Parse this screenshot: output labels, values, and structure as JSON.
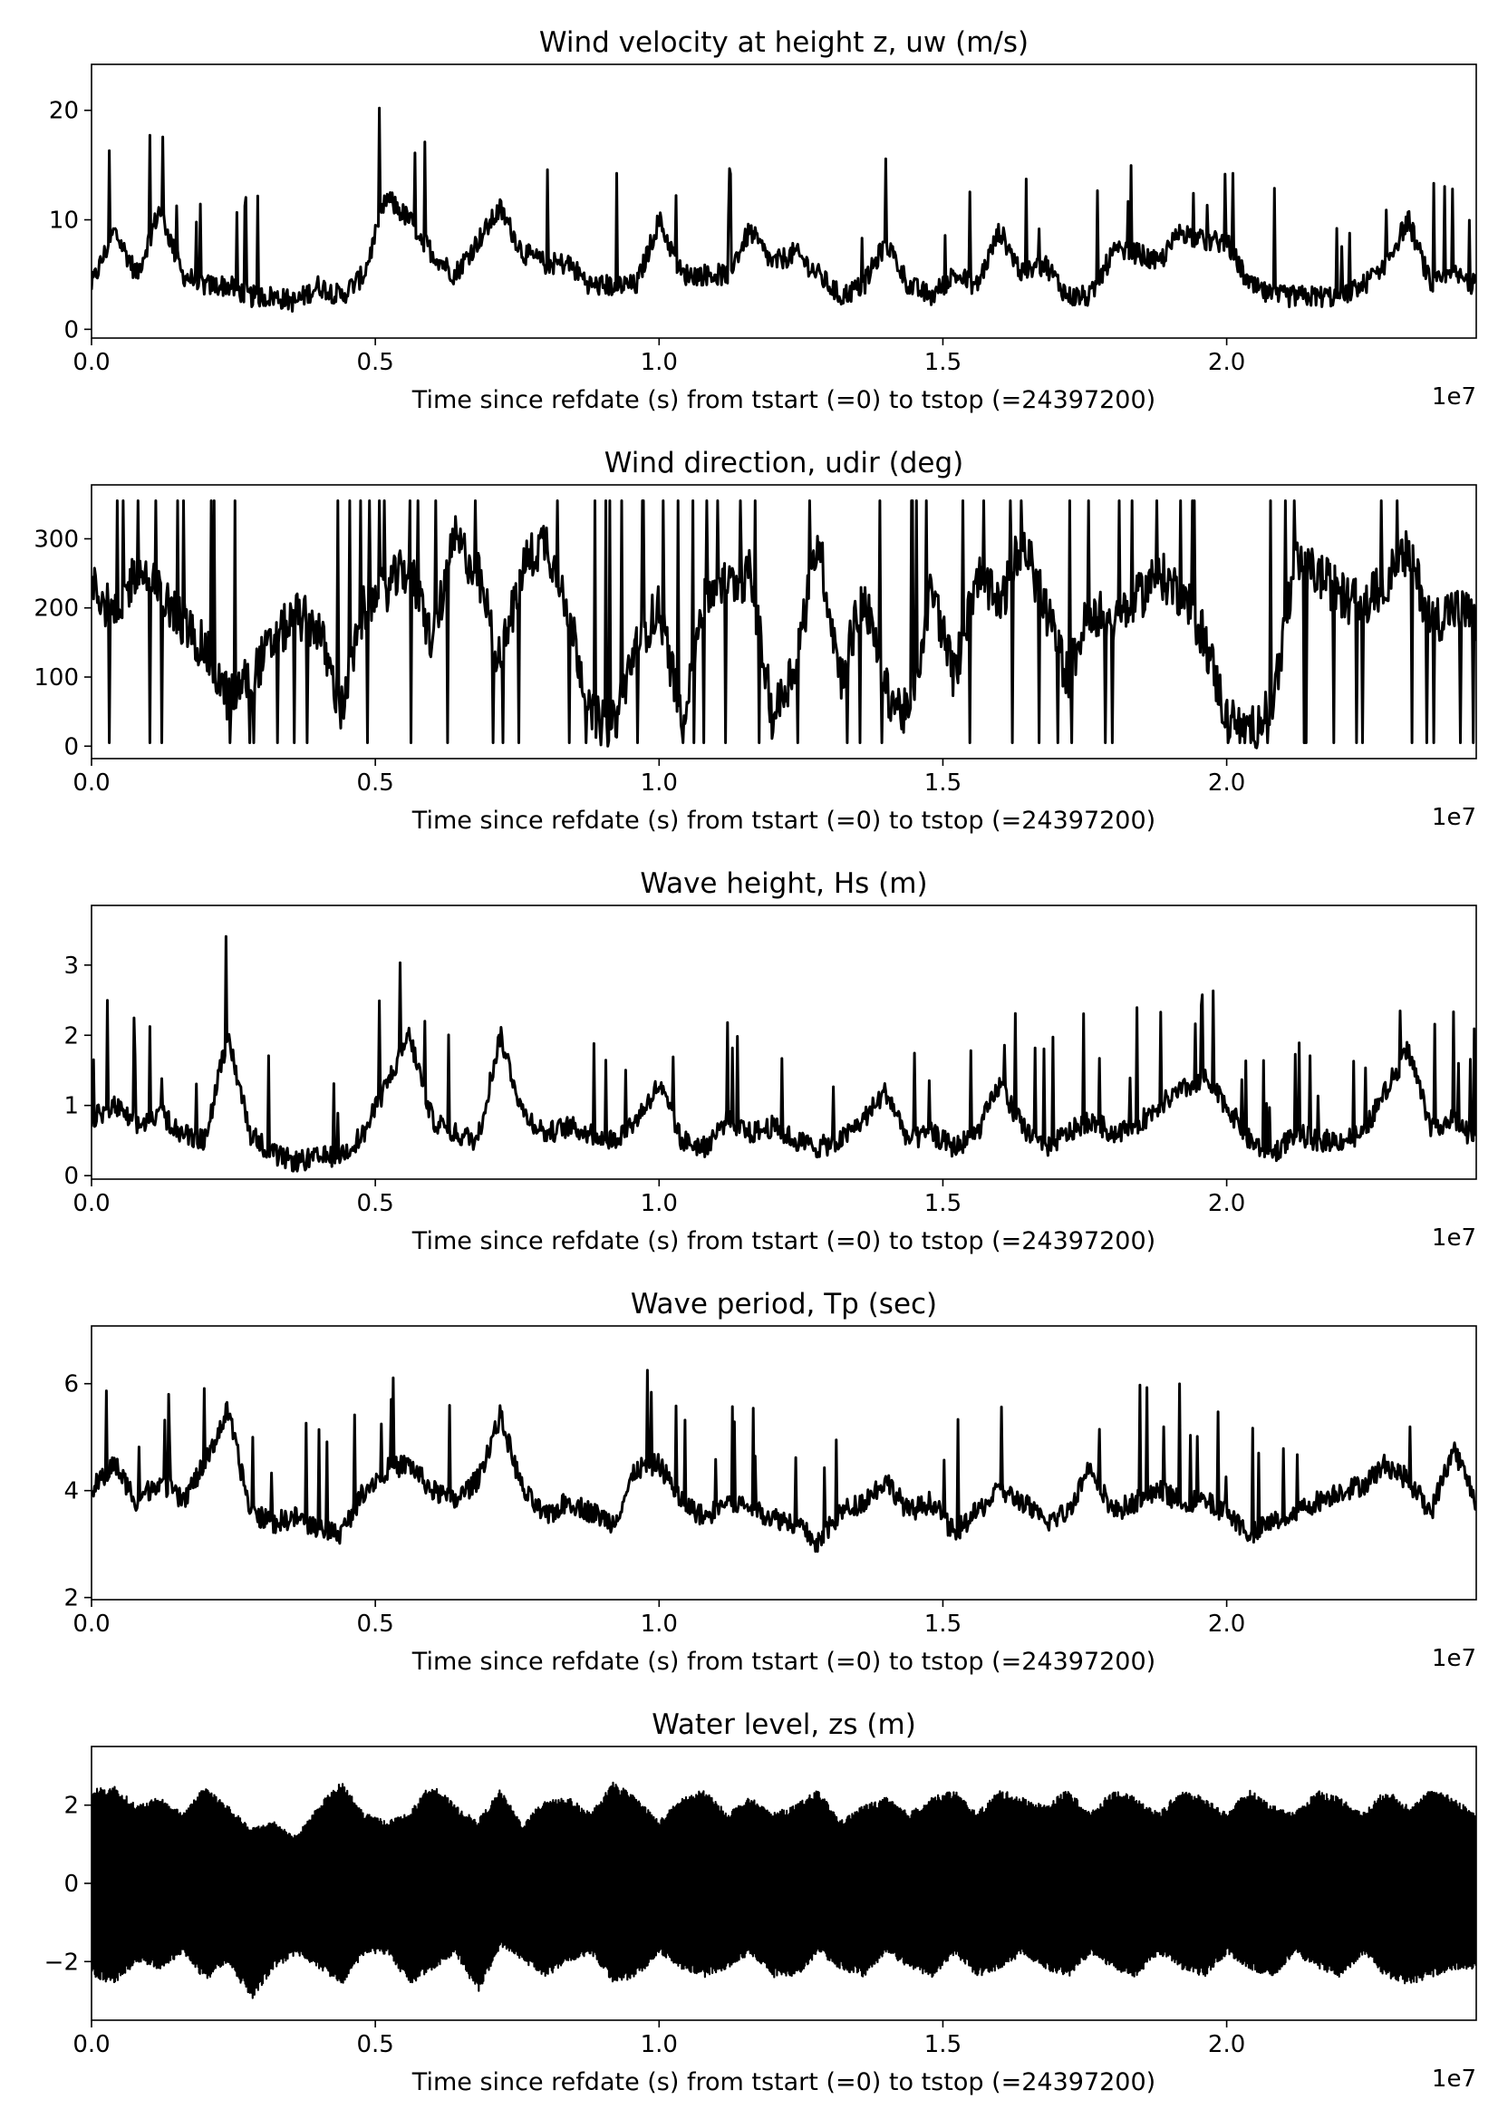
{
  "figure": {
    "line_color": "#000000"
  },
  "chart_data": [
    {
      "type": "line",
      "title": "Wind velocity at height z, uw (m/s)",
      "xlabel": "Time since refdate (s) from tstart (=0) to tstop (=24397200)",
      "x_offset_label": "1e7",
      "xlim": [
        0,
        24397200
      ],
      "ylim": [
        -0.8,
        24.2
      ],
      "x_ticks": [
        0,
        5000000,
        10000000,
        15000000,
        20000000
      ],
      "x_tick_labels": [
        "0.0",
        "0.5",
        "1.0",
        "1.5",
        "2.0"
      ],
      "y_ticks": [
        0,
        10,
        20
      ],
      "y_tick_labels": [
        "0",
        "10",
        "20"
      ],
      "grid": false,
      "x": [
        0,
        400000,
        800000,
        1200000,
        1600000,
        2000000,
        2400000,
        2800000,
        3200000,
        3600000,
        4000000,
        4400000,
        4800000,
        5200000,
        5600000,
        6000000,
        6400000,
        6800000,
        7200000,
        7600000,
        8000000,
        8400000,
        8800000,
        9200000,
        9600000,
        10000000,
        10400000,
        10800000,
        11200000,
        11600000,
        12000000,
        12400000,
        12800000,
        13200000,
        13600000,
        14000000,
        14400000,
        14800000,
        15200000,
        15600000,
        16000000,
        16400000,
        16800000,
        17200000,
        17600000,
        18000000,
        18400000,
        18800000,
        19200000,
        19600000,
        20000000,
        20400000,
        20800000,
        21200000,
        21600000,
        22000000,
        22400000,
        22800000,
        23200000,
        23600000,
        24000000,
        24397200
      ],
      "values": [
        4,
        9,
        5,
        11,
        5,
        4,
        4,
        3,
        3,
        2.5,
        4,
        3,
        5,
        12,
        10,
        7,
        5,
        8,
        11,
        7,
        6,
        6,
        4,
        4,
        4,
        10,
        5,
        5,
        5,
        9,
        6,
        7,
        5,
        3,
        4,
        8,
        4,
        3,
        5,
        4,
        9,
        5,
        6,
        3,
        3,
        7,
        7,
        6,
        9,
        8,
        8,
        4,
        3,
        3,
        3,
        3,
        4,
        6,
        10,
        4,
        5,
        4
      ]
    },
    {
      "type": "line",
      "title": "Wind direction, udir (deg)",
      "xlabel": "Time since refdate (s) from tstart (=0) to tstop (=24397200)",
      "x_offset_label": "1e7",
      "xlim": [
        0,
        24397200
      ],
      "ylim": [
        -18,
        378
      ],
      "x_ticks": [
        0,
        5000000,
        10000000,
        15000000,
        20000000
      ],
      "x_tick_labels": [
        "0.0",
        "0.5",
        "1.0",
        "1.5",
        "2.0"
      ],
      "y_ticks": [
        0,
        100,
        200,
        300
      ],
      "y_tick_labels": [
        "0",
        "100",
        "200",
        "300"
      ],
      "grid": false,
      "x": [
        0,
        400000,
        800000,
        1200000,
        1600000,
        2000000,
        2400000,
        2800000,
        3200000,
        3600000,
        4000000,
        4400000,
        4800000,
        5200000,
        5600000,
        6000000,
        6400000,
        6800000,
        7200000,
        7600000,
        8000000,
        8400000,
        8800000,
        9200000,
        9600000,
        10000000,
        10400000,
        10800000,
        11200000,
        11600000,
        12000000,
        12400000,
        12800000,
        13200000,
        13600000,
        14000000,
        14400000,
        14800000,
        15200000,
        15600000,
        16000000,
        16400000,
        16800000,
        17200000,
        17600000,
        18000000,
        18400000,
        18800000,
        19200000,
        19600000,
        20000000,
        20400000,
        20800000,
        21200000,
        21600000,
        22000000,
        22400000,
        22800000,
        23200000,
        23600000,
        24000000,
        24397200
      ],
      "values": [
        250,
        180,
        260,
        220,
        180,
        140,
        70,
        100,
        150,
        190,
        170,
        50,
        200,
        230,
        260,
        150,
        300,
        250,
        120,
        260,
        300,
        200,
        40,
        30,
        150,
        200,
        40,
        220,
        230,
        250,
        40,
        120,
        300,
        100,
        220,
        80,
        40,
        230,
        100,
        250,
        200,
        300,
        200,
        100,
        200,
        180,
        210,
        250,
        220,
        160,
        40,
        20,
        60,
        260,
        250,
        220,
        200,
        240,
        280,
        180,
        200,
        180
      ]
    },
    {
      "type": "line",
      "title": "Wave height, Hs (m)",
      "xlabel": "Time since refdate (s) from tstart (=0) to tstop (=24397200)",
      "x_offset_label": "1e7",
      "xlim": [
        0,
        24397200
      ],
      "ylim": [
        -0.05,
        3.85
      ],
      "x_ticks": [
        0,
        5000000,
        10000000,
        15000000,
        20000000
      ],
      "x_tick_labels": [
        "0.0",
        "0.5",
        "1.0",
        "1.5",
        "2.0"
      ],
      "y_ticks": [
        0,
        1,
        2,
        3
      ],
      "y_tick_labels": [
        "0",
        "1",
        "2",
        "3"
      ],
      "grid": false,
      "x": [
        0,
        400000,
        800000,
        1200000,
        1600000,
        2000000,
        2400000,
        2800000,
        3200000,
        3600000,
        4000000,
        4400000,
        4800000,
        5200000,
        5600000,
        6000000,
        6400000,
        6800000,
        7200000,
        7600000,
        8000000,
        8400000,
        8800000,
        9200000,
        9600000,
        10000000,
        10400000,
        10800000,
        11200000,
        11600000,
        12000000,
        12400000,
        12800000,
        13200000,
        13600000,
        14000000,
        14400000,
        14800000,
        15200000,
        15600000,
        16000000,
        16400000,
        16800000,
        17200000,
        17600000,
        18000000,
        18400000,
        18800000,
        19200000,
        19600000,
        20000000,
        20400000,
        20800000,
        21200000,
        21600000,
        22000000,
        22400000,
        22800000,
        23200000,
        23600000,
        24000000,
        24397200
      ],
      "values": [
        0.8,
        1.0,
        0.7,
        0.9,
        0.6,
        0.5,
        2.0,
        0.6,
        0.3,
        0.2,
        0.25,
        0.3,
        0.6,
        1.3,
        2.0,
        0.8,
        0.6,
        0.5,
        2.0,
        0.9,
        0.6,
        0.7,
        0.6,
        0.5,
        0.8,
        1.3,
        0.5,
        0.4,
        0.8,
        0.6,
        0.7,
        0.5,
        0.4,
        0.5,
        0.8,
        1.2,
        0.5,
        0.6,
        0.4,
        0.6,
        1.3,
        0.7,
        0.4,
        0.6,
        0.8,
        0.6,
        0.7,
        1.0,
        1.2,
        1.4,
        1.0,
        0.5,
        0.3,
        0.6,
        0.5,
        0.5,
        0.6,
        1.2,
        1.8,
        0.7,
        0.8,
        0.5
      ]
    },
    {
      "type": "line",
      "title": "Wave period, Tp (sec)",
      "xlabel": "Time since refdate (s) from tstart (=0) to tstop (=24397200)",
      "x_offset_label": "1e7",
      "xlim": [
        0,
        24397200
      ],
      "ylim": [
        1.96,
        7.08
      ],
      "x_ticks": [
        0,
        5000000,
        10000000,
        15000000,
        20000000
      ],
      "x_tick_labels": [
        "0.0",
        "0.5",
        "1.0",
        "1.5",
        "2.0"
      ],
      "y_ticks": [
        2,
        4,
        6
      ],
      "y_tick_labels": [
        "2",
        "4",
        "6"
      ],
      "grid": false,
      "x": [
        0,
        400000,
        800000,
        1200000,
        1600000,
        2000000,
        2400000,
        2800000,
        3200000,
        3600000,
        4000000,
        4400000,
        4800000,
        5200000,
        5600000,
        6000000,
        6400000,
        6800000,
        7200000,
        7600000,
        8000000,
        8400000,
        8800000,
        9200000,
        9600000,
        10000000,
        10400000,
        10800000,
        11200000,
        11600000,
        12000000,
        12400000,
        12800000,
        13200000,
        13600000,
        14000000,
        14400000,
        14800000,
        15200000,
        15600000,
        16000000,
        16400000,
        16800000,
        17200000,
        17600000,
        18000000,
        18400000,
        18800000,
        19200000,
        19600000,
        20000000,
        20400000,
        20800000,
        21200000,
        21600000,
        22000000,
        22400000,
        22800000,
        23200000,
        23600000,
        24000000,
        24397200
      ],
      "values": [
        4.0,
        4.5,
        3.8,
        4.2,
        3.8,
        4.5,
        5.5,
        3.6,
        3.4,
        3.5,
        3.3,
        3.2,
        4.0,
        4.4,
        4.5,
        4.0,
        3.8,
        4.2,
        5.4,
        4.0,
        3.5,
        3.8,
        3.6,
        3.4,
        4.4,
        4.5,
        3.8,
        3.5,
        3.8,
        3.7,
        3.5,
        3.4,
        3.0,
        3.6,
        3.8,
        4.2,
        3.6,
        3.8,
        3.2,
        3.6,
        4.0,
        3.8,
        3.4,
        3.6,
        4.5,
        3.6,
        3.8,
        4.0,
        3.8,
        3.8,
        3.6,
        3.2,
        3.4,
        3.6,
        3.8,
        4.0,
        4.1,
        4.5,
        4.2,
        3.6,
        4.8,
        3.8
      ]
    },
    {
      "type": "line",
      "title": "Water level, zs (m)",
      "xlabel": "Time since refdate (s) from tstart (=0) to tstop (=24397200)",
      "x_offset_label": "1e7",
      "xlim": [
        0,
        24397200
      ],
      "ylim": [
        -3.5,
        3.5
      ],
      "x_ticks": [
        0,
        5000000,
        10000000,
        15000000,
        20000000
      ],
      "x_tick_labels": [
        "0.0",
        "0.5",
        "1.0",
        "1.5",
        "2.0"
      ],
      "y_ticks": [
        -2,
        0,
        2
      ],
      "y_tick_labels": [
        "−2",
        "0",
        "2"
      ],
      "grid": false,
      "envelope": {
        "x": [
          0,
          400000,
          800000,
          1200000,
          1600000,
          2000000,
          2400000,
          2800000,
          3200000,
          3600000,
          4000000,
          4400000,
          4800000,
          5200000,
          5600000,
          6000000,
          6400000,
          6800000,
          7200000,
          7600000,
          8000000,
          8400000,
          8800000,
          9200000,
          9600000,
          10000000,
          10400000,
          10800000,
          11200000,
          11600000,
          12000000,
          12400000,
          12800000,
          13200000,
          13600000,
          14000000,
          14400000,
          14800000,
          15200000,
          15600000,
          16000000,
          16400000,
          16800000,
          17200000,
          17600000,
          18000000,
          18400000,
          18800000,
          19200000,
          19600000,
          20000000,
          20400000,
          20800000,
          21200000,
          21600000,
          22000000,
          22400000,
          22800000,
          23200000,
          23600000,
          24000000,
          24397200
        ],
        "upper": [
          2.4,
          2.5,
          2.0,
          2.2,
          1.8,
          2.5,
          2.0,
          1.4,
          1.6,
          1.2,
          2.0,
          2.6,
          1.8,
          1.6,
          1.8,
          2.6,
          2.0,
          1.6,
          2.4,
          1.5,
          2.2,
          2.2,
          1.8,
          2.6,
          2.2,
          1.6,
          2.2,
          2.4,
          1.8,
          2.2,
          1.8,
          2.0,
          2.4,
          1.6,
          2.0,
          2.2,
          1.8,
          2.2,
          2.4,
          1.8,
          2.4,
          2.2,
          2.0,
          2.4,
          1.8,
          2.4,
          2.2,
          1.8,
          2.4,
          2.2,
          1.8,
          2.4,
          2.0,
          1.8,
          2.4,
          2.2,
          1.8,
          2.4,
          2.0,
          2.4,
          2.2,
          1.8
        ],
        "lower": [
          -2.4,
          -2.6,
          -2.0,
          -2.2,
          -1.8,
          -2.5,
          -2.0,
          -3.0,
          -2.2,
          -1.8,
          -2.2,
          -2.6,
          -1.8,
          -1.8,
          -2.6,
          -2.2,
          -1.8,
          -2.8,
          -1.6,
          -2.0,
          -2.4,
          -2.0,
          -1.8,
          -2.6,
          -2.4,
          -1.8,
          -2.2,
          -2.4,
          -2.2,
          -1.8,
          -2.4,
          -2.4,
          -1.8,
          -2.2,
          -2.4,
          -1.8,
          -2.2,
          -2.4,
          -1.8,
          -2.4,
          -2.2,
          -1.8,
          -2.2,
          -2.4,
          -1.8,
          -2.2,
          -2.4,
          -1.8,
          -2.2,
          -2.4,
          -1.8,
          -2.2,
          -2.4,
          -1.8,
          -2.2,
          -2.4,
          -1.8,
          -2.4,
          -2.6,
          -2.4,
          -2.2,
          -2.2
        ]
      }
    }
  ]
}
